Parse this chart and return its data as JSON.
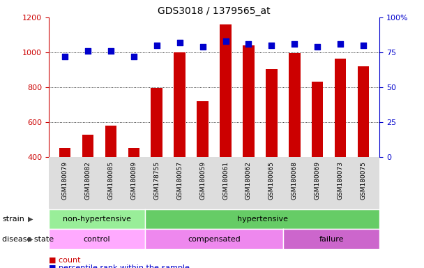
{
  "title": "GDS3018 / 1379565_at",
  "samples": [
    "GSM180079",
    "GSM180082",
    "GSM180085",
    "GSM180089",
    "GSM178755",
    "GSM180057",
    "GSM180059",
    "GSM180061",
    "GSM180062",
    "GSM180065",
    "GSM180068",
    "GSM180069",
    "GSM180073",
    "GSM180075"
  ],
  "counts": [
    450,
    525,
    580,
    450,
    795,
    1000,
    720,
    1160,
    1040,
    905,
    995,
    830,
    965,
    920
  ],
  "percentiles": [
    72,
    76,
    76,
    72,
    80,
    82,
    79,
    83,
    81,
    80,
    81,
    79,
    81,
    80
  ],
  "ylim_left": [
    400,
    1200
  ],
  "ylim_right": [
    0,
    100
  ],
  "yticks_left": [
    400,
    600,
    800,
    1000,
    1200
  ],
  "yticks_right": [
    0,
    25,
    50,
    75,
    100
  ],
  "ytick_right_labels": [
    "0",
    "25",
    "50",
    "75",
    "100%"
  ],
  "bar_color": "#cc0000",
  "dot_color": "#0000cc",
  "bar_bottom": 400,
  "strain_groups": [
    {
      "label": "non-hypertensive",
      "start": 0,
      "end": 4,
      "color": "#99ee99"
    },
    {
      "label": "hypertensive",
      "start": 4,
      "end": 14,
      "color": "#66cc66"
    }
  ],
  "disease_groups": [
    {
      "label": "control",
      "start": 0,
      "end": 4,
      "color": "#ffaaff"
    },
    {
      "label": "compensated",
      "start": 4,
      "end": 10,
      "color": "#ee88ee"
    },
    {
      "label": "failure",
      "start": 10,
      "end": 14,
      "color": "#cc66cc"
    }
  ],
  "bg_color": "#ffffff",
  "xtick_bg": "#dddddd"
}
